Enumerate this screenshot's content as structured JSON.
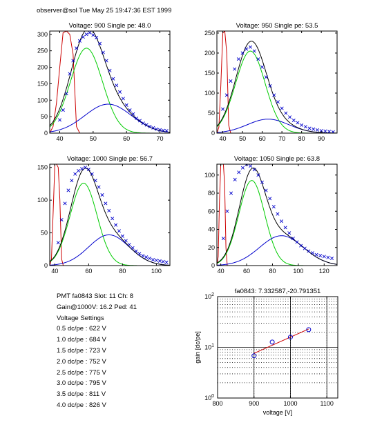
{
  "header": "observer@sol  Tue May 25 19:47:36 EST 1999",
  "colors": {
    "data": "#0000cc",
    "fit": "#000000",
    "single": "#00cc00",
    "double": "#0000cc",
    "pedestal": "#cc0000",
    "gainfit": "#cc0000"
  },
  "info": {
    "pmt_line": "PMT fa0843 Slot: 11 Ch: 8",
    "gain_line": "Gain@1000V: 16.2 Ped: 41",
    "settings_title": "Voltage Settings",
    "settings": [
      "0.5 dc/pe : 622 V",
      "1.0 dc/pe : 684 V",
      "1.5 dc/pe : 723 V",
      "2.0 dc/pe : 752 V",
      "2.5 dc/pe : 775 V",
      "3.0 dc/pe : 795 V",
      "3.5 dc/pe : 811 V",
      "4.0 dc/pe : 826 V"
    ]
  },
  "chart_data": [
    {
      "type": "scatter",
      "title": "Voltage: 900 Single pe: 48.0",
      "xlim": [
        37,
        73
      ],
      "ylim": [
        0,
        310
      ],
      "xticks": [
        40,
        50,
        60,
        70
      ],
      "yticks": [
        0,
        50,
        100,
        150,
        200,
        250,
        300
      ],
      "pedestal": {
        "x": [
          37,
          38,
          39,
          40,
          41,
          42,
          43,
          44,
          45,
          46,
          47
        ],
        "y": [
          0,
          20,
          90,
          200,
          305,
          310,
          300,
          240,
          20,
          0,
          0
        ]
      },
      "single": {
        "mu": 48.0,
        "sigma": 4.8,
        "amp": 258
      },
      "double": {
        "mu": 54.5,
        "sigma": 7.0,
        "amp": 88
      },
      "points": {
        "x": [
          40,
          41,
          42,
          43,
          44,
          45,
          46,
          47,
          48,
          49,
          50,
          51,
          52,
          53,
          54,
          55,
          56,
          57,
          58,
          59,
          60,
          61,
          62,
          63,
          64,
          65,
          66,
          67,
          68,
          69,
          70,
          71,
          72
        ],
        "y": [
          40,
          70,
          120,
          180,
          220,
          258,
          280,
          292,
          300,
          305,
          298,
          290,
          272,
          245,
          220,
          190,
          165,
          145,
          125,
          105,
          85,
          70,
          58,
          45,
          38,
          30,
          25,
          20,
          16,
          12,
          10,
          8,
          7
        ]
      }
    },
    {
      "type": "scatter",
      "title": "Voltage: 950 Single pe: 53.5",
      "xlim": [
        37,
        98
      ],
      "ylim": [
        0,
        255
      ],
      "xticks": [
        40,
        50,
        60,
        70,
        80,
        90
      ],
      "yticks": [
        0,
        50,
        100,
        150,
        200,
        250
      ],
      "pedestal": {
        "x": [
          37,
          38,
          39,
          40,
          41,
          42,
          43,
          44
        ],
        "y": [
          0,
          15,
          120,
          250,
          255,
          200,
          20,
          0
        ]
      },
      "single": {
        "mu": 54.0,
        "sigma": 7.5,
        "amp": 205
      },
      "double": {
        "mu": 63.0,
        "sigma": 10.5,
        "amp": 35
      },
      "points": {
        "x": [
          40,
          42,
          44,
          46,
          48,
          50,
          52,
          54,
          56,
          58,
          60,
          62,
          64,
          66,
          68,
          70,
          72,
          74,
          76,
          78,
          80,
          82,
          84,
          86,
          88,
          90,
          92,
          94,
          96
        ],
        "y": [
          60,
          95,
          130,
          160,
          185,
          200,
          210,
          215,
          205,
          185,
          165,
          140,
          118,
          95,
          78,
          62,
          50,
          40,
          32,
          26,
          20,
          16,
          12,
          10,
          8,
          6,
          5,
          4,
          3
        ]
      }
    },
    {
      "type": "scatter",
      "title": "Voltage: 1000 Single pe: 56.7",
      "xlim": [
        37,
        108
      ],
      "ylim": [
        0,
        155
      ],
      "xticks": [
        40,
        60,
        80,
        100
      ],
      "yticks": [
        0,
        50,
        100,
        150
      ],
      "pedestal": {
        "x": [
          37,
          38,
          39,
          40,
          41,
          42,
          43,
          44,
          45
        ],
        "y": [
          0,
          10,
          80,
          155,
          155,
          150,
          100,
          10,
          0
        ]
      },
      "single": {
        "mu": 57.0,
        "sigma": 8.0,
        "amp": 126
      },
      "double": {
        "mu": 72.0,
        "sigma": 12.0,
        "amp": 47
      },
      "points": {
        "x": [
          42,
          44,
          46,
          48,
          50,
          52,
          54,
          56,
          58,
          60,
          62,
          64,
          66,
          68,
          70,
          72,
          74,
          76,
          78,
          80,
          82,
          84,
          86,
          88,
          90,
          92,
          94,
          96,
          98,
          100,
          102,
          104,
          106
        ],
        "y": [
          35,
          70,
          95,
          115,
          130,
          140,
          145,
          148,
          150,
          147,
          140,
          130,
          120,
          108,
          95,
          84,
          72,
          62,
          53,
          45,
          38,
          32,
          27,
          22,
          18,
          15,
          13,
          11,
          9,
          8,
          7,
          6,
          5
        ]
      }
    },
    {
      "type": "scatter",
      "title": "Voltage: 1050 Single pe: 63.8",
      "xlim": [
        37,
        130
      ],
      "ylim": [
        0,
        112
      ],
      "xticks": [
        40,
        60,
        80,
        100,
        120
      ],
      "yticks": [
        0,
        20,
        40,
        60,
        80,
        100
      ],
      "pedestal": {
        "x": [
          37,
          38,
          39,
          40,
          41,
          42,
          43,
          44,
          45,
          46
        ],
        "y": [
          0,
          10,
          70,
          112,
          112,
          112,
          90,
          20,
          0,
          0
        ]
      },
      "single": {
        "mu": 64.0,
        "sigma": 10.0,
        "amp": 94
      },
      "double": {
        "mu": 87.0,
        "sigma": 17.0,
        "amp": 33
      },
      "points": {
        "x": [
          42,
          45,
          48,
          51,
          54,
          57,
          60,
          63,
          66,
          69,
          72,
          75,
          78,
          81,
          84,
          87,
          90,
          93,
          96,
          99,
          102,
          105,
          108,
          111,
          114,
          117,
          120,
          123,
          126
        ],
        "y": [
          30,
          60,
          80,
          95,
          103,
          108,
          112,
          110,
          106,
          100,
          92,
          83,
          74,
          65,
          57,
          49,
          42,
          36,
          30,
          26,
          22,
          19,
          16,
          14,
          12,
          11,
          10,
          9,
          8
        ]
      }
    },
    {
      "type": "scatter",
      "title": "fa0843: 7.332587,-20.791351",
      "xlabel": "voltage [V]",
      "ylabel": "gain [dc/pe]",
      "xlim": [
        800,
        1130
      ],
      "ylim": [
        1,
        100
      ],
      "yscale": "log",
      "xticks": [
        800,
        900,
        1000,
        1100
      ],
      "yticks": [
        {
          "value": 1,
          "base": "10",
          "exp": "0"
        },
        {
          "value": 10,
          "base": "10",
          "exp": "1"
        },
        {
          "value": 100,
          "base": "10",
          "exp": "2"
        }
      ],
      "grid": true,
      "points": {
        "x": [
          900,
          950,
          1000,
          1050
        ],
        "y": [
          6.8,
          12.7,
          15.9,
          22.3
        ]
      },
      "fit": {
        "x": [
          900,
          1050
        ],
        "y": [
          7.6,
          23.0
        ]
      }
    }
  ]
}
